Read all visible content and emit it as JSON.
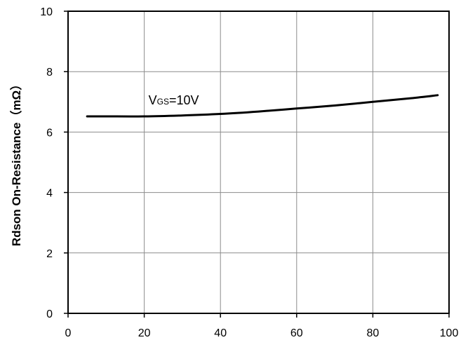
{
  "chart_data": {
    "type": "line",
    "title": "",
    "xlabel": "",
    "ylabel": "Rdson On-Resistance（mΩ）",
    "xlim": [
      0,
      100
    ],
    "ylim": [
      0,
      10
    ],
    "xticks": [
      "0",
      "20",
      "40",
      "60",
      "80",
      "100"
    ],
    "yticks": [
      "0",
      "2",
      "4",
      "6",
      "8",
      "10"
    ],
    "grid": true,
    "legend": "none",
    "series": [
      {
        "x": [
          5,
          10,
          20,
          30,
          40,
          50,
          60,
          70,
          80,
          90,
          97
        ],
        "values": [
          6.52,
          6.52,
          6.52,
          6.55,
          6.6,
          6.68,
          6.78,
          6.88,
          7.0,
          7.12,
          7.22
        ],
        "color": "#000000"
      }
    ],
    "annotation": {
      "text_main": "V",
      "text_sub": "GS",
      "text_rest": "=10V",
      "x": 20,
      "y": 7.1
    }
  }
}
